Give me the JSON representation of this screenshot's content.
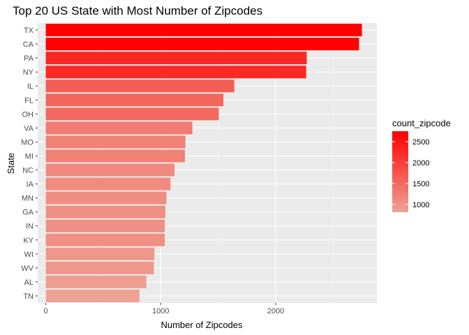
{
  "chart_data": {
    "type": "bar",
    "orientation": "horizontal",
    "title": "Top 20 US State with Most Number of Zipcodes",
    "xlabel": "Number of Zipcodes",
    "ylabel": "State",
    "xlim": [
      -70,
      2880
    ],
    "xticks": [
      0,
      1000,
      2000
    ],
    "grid": true,
    "categories": [
      "TX",
      "CA",
      "PA",
      "NY",
      "IL",
      "FL",
      "OH",
      "VA",
      "MO",
      "MI",
      "NC",
      "IA",
      "MN",
      "GA",
      "IN",
      "KY",
      "WI",
      "WV",
      "AL",
      "TN"
    ],
    "values": [
      2750,
      2725,
      2270,
      2265,
      1640,
      1545,
      1505,
      1275,
      1215,
      1210,
      1120,
      1085,
      1050,
      1040,
      1035,
      1035,
      945,
      940,
      875,
      815
    ],
    "legend": {
      "title": "count_zipcode",
      "position": "right",
      "ticks": [
        1000,
        1500,
        2000,
        2500
      ],
      "color_low": "#ECA394",
      "color_high": "#FF0000",
      "range": [
        815,
        2750
      ]
    },
    "colors": {
      "panel": "#EBEBEB",
      "grid_major": "#FFFFFF",
      "grid_minor": "#F5F5F5"
    }
  }
}
